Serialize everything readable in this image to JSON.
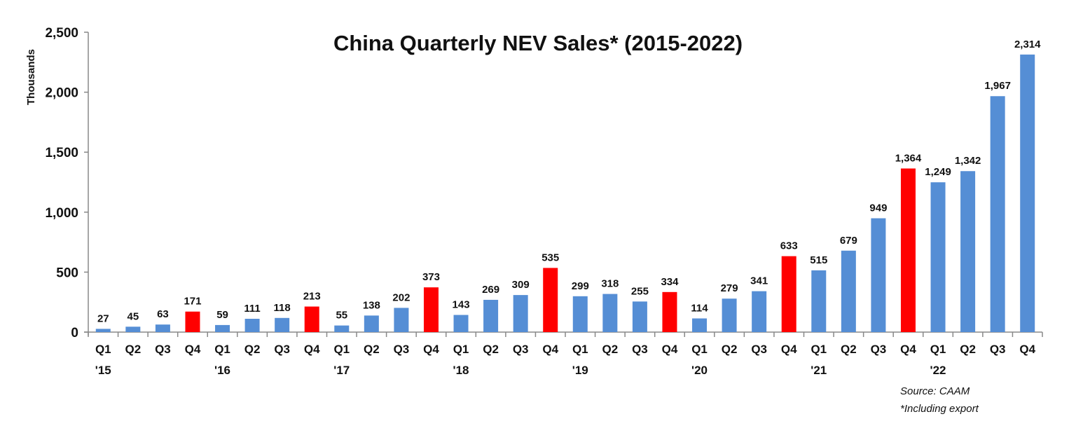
{
  "chart_data": {
    "type": "bar",
    "title": "China Quarterly NEV Sales* (2015-2022)",
    "ylabel": "Thousands",
    "xlabel": "",
    "ylim": [
      0,
      2500
    ],
    "yticks": [
      "0",
      "500",
      "1,000",
      "1,500",
      "2,000",
      "2,500"
    ],
    "ytick_values": [
      0,
      500,
      1000,
      1500,
      2000,
      2500
    ],
    "grid": false,
    "categories": [
      "Q1",
      "Q2",
      "Q3",
      "Q4",
      "Q1",
      "Q2",
      "Q3",
      "Q4",
      "Q1",
      "Q2",
      "Q3",
      "Q4",
      "Q1",
      "Q2",
      "Q3",
      "Q4",
      "Q1",
      "Q2",
      "Q3",
      "Q4",
      "Q1",
      "Q2",
      "Q3",
      "Q4",
      "Q1",
      "Q2",
      "Q3",
      "Q4",
      "Q1",
      "Q2",
      "Q3",
      "Q4"
    ],
    "year_labels": [
      "'15",
      "",
      "",
      "",
      "'16",
      "",
      "",
      "",
      "'17",
      "",
      "",
      "",
      "'18",
      "",
      "",
      "",
      "'19",
      "",
      "",
      "",
      "'20",
      "",
      "",
      "",
      "'21",
      "",
      "",
      "",
      "'22",
      "",
      "",
      ""
    ],
    "values": [
      27,
      45,
      63,
      171,
      59,
      111,
      118,
      213,
      55,
      138,
      202,
      373,
      143,
      269,
      309,
      535,
      299,
      318,
      255,
      334,
      114,
      279,
      341,
      633,
      515,
      679,
      949,
      1364,
      1249,
      1342,
      1967,
      2314
    ],
    "data_labels": [
      "27",
      "45",
      "63",
      "171",
      "59",
      "111",
      "118",
      "213",
      "55",
      "138",
      "202",
      "373",
      "143",
      "269",
      "309",
      "535",
      "299",
      "318",
      "255",
      "334",
      "114",
      "279",
      "341",
      "633",
      "515",
      "679",
      "949",
      "1,364",
      "1,249",
      "1,342",
      "1,967",
      "2,314"
    ],
    "colors": {
      "default": "#558ed5",
      "q4_highlight": "#ff0000",
      "axis": "#888888"
    },
    "source": "Source: CAAM",
    "footnote": "*Including export"
  }
}
